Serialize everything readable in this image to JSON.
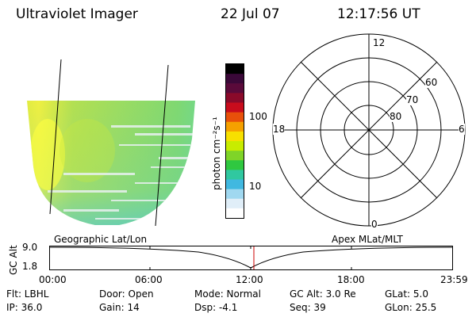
{
  "header": {
    "title": "Ultraviolet Imager",
    "date": "22 Jul 07",
    "time": "12:17:56 UT"
  },
  "colorbar": {
    "unit_label": "photon cm⁻²s⁻¹",
    "ticks": [
      "100",
      "10"
    ],
    "colors": [
      "#000000",
      "#3a0838",
      "#5a0a3a",
      "#8a0a2a",
      "#c80c1c",
      "#e8500a",
      "#f5a000",
      "#f7e000",
      "#c8ec00",
      "#7fd428",
      "#2fc840",
      "#30c8a0",
      "#40b8e0",
      "#a0d8f0",
      "#e0eef8",
      "#ffffff"
    ]
  },
  "polar": {
    "rings": [
      "80",
      "70",
      "60"
    ],
    "mlt_labels": {
      "top": "12",
      "left": "18",
      "right": "6",
      "bottom": "0"
    }
  },
  "labels": {
    "geo": "Geographic Lat/Lon",
    "apex": "Apex  MLat/MLT"
  },
  "altplot": {
    "ylabel": "GC Alt",
    "yticks": [
      "9.0",
      "1.8"
    ],
    "xticks": [
      "00:00",
      "06:00",
      "12:00",
      "18:00",
      "23:59"
    ]
  },
  "info": {
    "row1": [
      "Flt: LBHL",
      "Door: Open",
      "Mode: Normal",
      "GC Alt: 3.0 Re",
      "GLat:  5.0"
    ],
    "row2": [
      "IP: 36.0",
      "Gain: 14",
      "Dsp:    -4.1",
      "Seq: 39",
      "GLon:  25.5"
    ]
  }
}
